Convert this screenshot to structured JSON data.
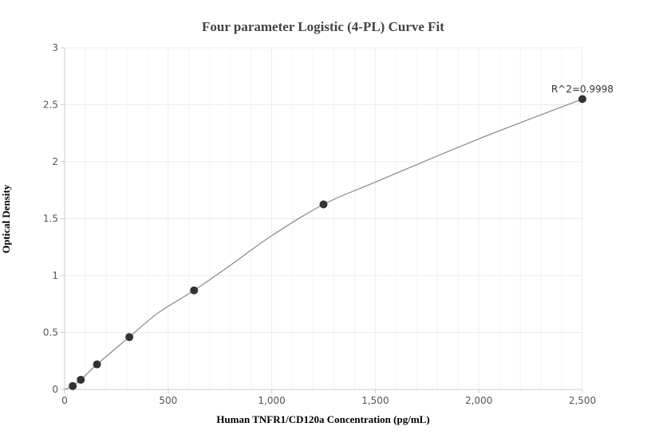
{
  "chart_data": {
    "type": "scatter",
    "title": "Four parameter Logistic (4-PL) Curve Fit",
    "xlabel": "Human TNFR1/CD120a Concentration (pg/mL)",
    "ylabel": "Optical Density",
    "xlim": [
      0,
      2500
    ],
    "ylim": [
      0,
      3
    ],
    "x_ticks": [
      0,
      500,
      1000,
      1500,
      2000,
      2500
    ],
    "x_tick_labels": [
      "0",
      "500",
      "1,000",
      "1,500",
      "2,000",
      "2,500"
    ],
    "y_ticks": [
      0,
      0.5,
      1,
      1.5,
      2,
      2.5,
      3
    ],
    "y_tick_labels": [
      "0",
      "0.5",
      "1",
      "1.5",
      "2",
      "2.5",
      "3"
    ],
    "grid": true,
    "series": [
      {
        "x": [
          39.06,
          78.13,
          156.25,
          312.5,
          625,
          1250,
          2500
        ],
        "y": [
          0.03,
          0.085,
          0.22,
          0.46,
          0.87,
          1.625,
          2.55
        ]
      }
    ],
    "fit_curve": {
      "x": [
        0,
        39.06,
        78.13,
        156.25,
        312.5,
        450,
        625,
        800,
        1000,
        1250,
        1500,
        2000,
        2500
      ],
      "y": [
        0.0,
        0.03,
        0.085,
        0.22,
        0.46,
        0.67,
        0.87,
        1.09,
        1.35,
        1.625,
        1.82,
        2.2,
        2.55
      ]
    },
    "annotation": "R^2=0.9998",
    "colors": {
      "points": "#333333",
      "curve": "#888888",
      "grid": "#ececec",
      "axis": "#cccccc"
    }
  }
}
